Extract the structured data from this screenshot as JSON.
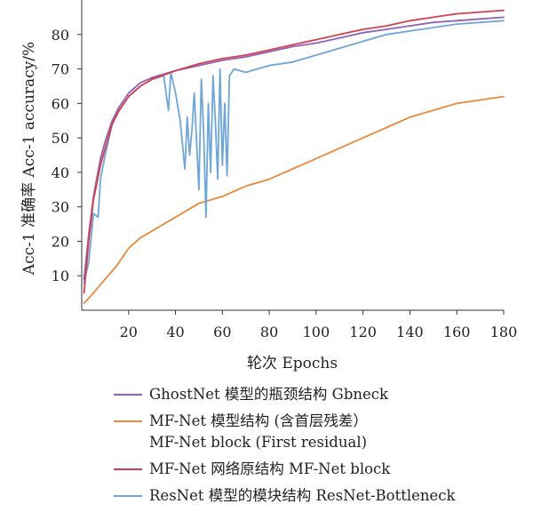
{
  "chart_data": {
    "type": "line",
    "xlabel": "轮次 Epochs",
    "ylabel": "Acc-1 准确率 Acc-1 accuracy/%",
    "xlim": [
      0,
      180
    ],
    "ylim": [
      0,
      90
    ],
    "xticks": [
      20,
      40,
      60,
      80,
      100,
      120,
      140,
      160,
      180
    ],
    "yticks": [
      10,
      20,
      30,
      40,
      50,
      60,
      70,
      80
    ],
    "grid": false,
    "legend_position": "bottom",
    "series": [
      {
        "name": "GhostNet 模型的瓶颈结构 Gbneck",
        "color": "#8e62b5",
        "x": [
          1,
          3,
          5,
          8,
          10,
          13,
          16,
          20,
          25,
          30,
          40,
          50,
          60,
          70,
          80,
          90,
          100,
          110,
          120,
          130,
          140,
          150,
          160,
          170,
          180
        ],
        "y": [
          9,
          22,
          33,
          44,
          49,
          55,
          59,
          63,
          66,
          67.5,
          69.5,
          71,
          72.5,
          73.5,
          75,
          76.5,
          77.5,
          79,
          80.5,
          81.5,
          82.5,
          83.5,
          84,
          84.5,
          85
        ]
      },
      {
        "name": "MF-Net 模型结构 (含首层残差）MF-Net block (First residual)",
        "color": "#e88a3c",
        "x": [
          1,
          5,
          10,
          15,
          20,
          25,
          30,
          40,
          50,
          60,
          70,
          80,
          90,
          100,
          110,
          120,
          130,
          140,
          150,
          160,
          170,
          180
        ],
        "y": [
          2,
          5,
          9,
          13,
          18,
          21,
          23,
          27,
          31,
          33,
          36,
          38,
          41,
          44,
          47,
          50,
          53,
          56,
          58,
          60,
          61,
          62
        ]
      },
      {
        "name": "MF-Net 网络原结构 MF-Net block",
        "color": "#d2404f",
        "x": [
          1,
          3,
          5,
          8,
          10,
          13,
          16,
          20,
          25,
          30,
          40,
          50,
          60,
          70,
          80,
          90,
          100,
          110,
          120,
          130,
          140,
          150,
          160,
          170,
          180
        ],
        "y": [
          5,
          20,
          32,
          42,
          47,
          54,
          58,
          62,
          65,
          67,
          69.5,
          71.5,
          73,
          74,
          75.5,
          77,
          78.5,
          80,
          81.5,
          82.5,
          84,
          85,
          86,
          86.5,
          87
        ]
      },
      {
        "name": "ResNet 模型的模块结构 ResNet-Bottleneck",
        "color": "#6ea6d8",
        "x": [
          1,
          3,
          5,
          7,
          8,
          10,
          13,
          16,
          20,
          25,
          30,
          35,
          37,
          38,
          40,
          42,
          44,
          45,
          46,
          47,
          48,
          50,
          51,
          52,
          53,
          54,
          55,
          56,
          57,
          58,
          59,
          60,
          61,
          62,
          63,
          65,
          70,
          80,
          90,
          100,
          110,
          120,
          130,
          140,
          150,
          160,
          170,
          180
        ],
        "y": [
          8,
          14,
          28,
          27,
          38,
          45,
          54,
          58,
          62,
          65,
          67,
          68,
          58,
          69,
          63,
          55,
          41,
          56,
          45,
          52,
          63,
          35,
          67,
          52,
          27,
          60,
          40,
          68,
          55,
          38,
          70,
          42,
          60,
          39,
          68,
          70,
          69,
          71,
          72,
          74,
          76,
          78,
          80,
          81,
          82,
          83,
          83.5,
          84
        ]
      }
    ]
  },
  "legend": {
    "items": [
      {
        "label": "GhostNet 模型的瓶颈结构 Gbneck",
        "color": "#8e62b5"
      },
      {
        "label": "MF-Net 模型结构 (含首层残差）",
        "sub": "MF-Net block (First residual)",
        "color": "#e88a3c"
      },
      {
        "label": "MF-Net 网络原结构 MF-Net block",
        "color": "#d2404f"
      },
      {
        "label": "ResNet 模型的模块结构 ResNet-Bottleneck",
        "color": "#6ea6d8"
      }
    ]
  }
}
